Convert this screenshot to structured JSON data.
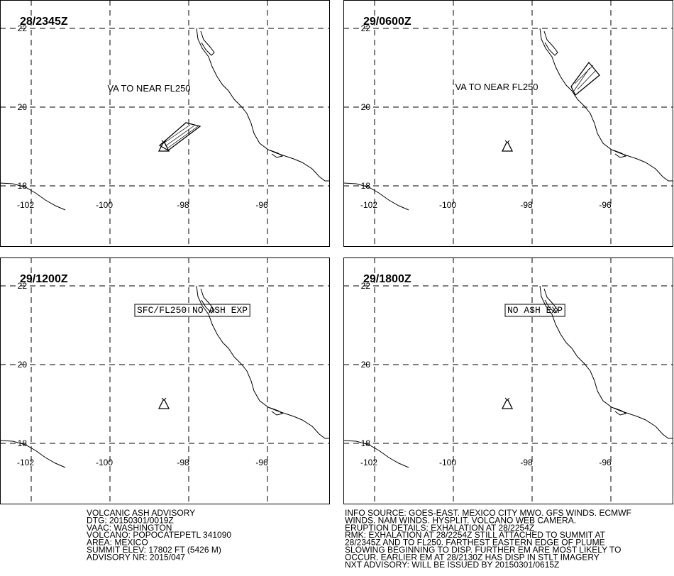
{
  "panels": [
    {
      "time": "28/2345Z",
      "annotation": "VA TO NEAR FL250"
    },
    {
      "time": "29/0600Z",
      "annotation": "VA TO NEAR FL250"
    },
    {
      "time": "29/1200Z",
      "annotation": "SFC/FL250 NO ASH EXP"
    },
    {
      "time": "29/1800Z",
      "annotation": "NO ASH EXP"
    }
  ],
  "grid": {
    "lat_labels": [
      "22",
      "20",
      "18"
    ],
    "lon_labels": [
      "-102",
      "-100",
      "-98",
      "-96"
    ]
  },
  "advisory_left": [
    "VOLCANIC ASH ADVISORY",
    "DTG: 20150301/0019Z",
    "VAAC: WASHINGTON",
    "VOLCANO: POPOCATEPETL 341090",
    "AREA: MEXICO",
    "SUMMIT ELEV: 17802 FT (5426 M)",
    "ADVISORY NR: 2015/047"
  ],
  "advisory_right": [
    "INFO SOURCE: GOES-EAST. MEXICO CITY MWO. GFS WINDS. ECMWF",
    "WINDS. NAM WINDS. HYSPLIT. VOLCANO WEB CAMERA.",
    "ERUPTION DETAILS: EXHALATION AT 28/2254Z",
    "RMK: EXHALATION AT 28/2254Z STILL ATTACHED TO SUMMIT AT",
    "28/2345Z AND TO FL250. FARTHEST EASTERN EDGE OF PLUME",
    "SLOWING BEGINNING TO DISP. FURTHER EM ARE MOST LIKELY TO",
    "OCCUR. EARLIER EM AT 28/2130Z HAS DISP IN STLT IMAGERY",
    "NXT ADVISORY: WILL BE ISSUED BY 20150301/0615Z"
  ]
}
